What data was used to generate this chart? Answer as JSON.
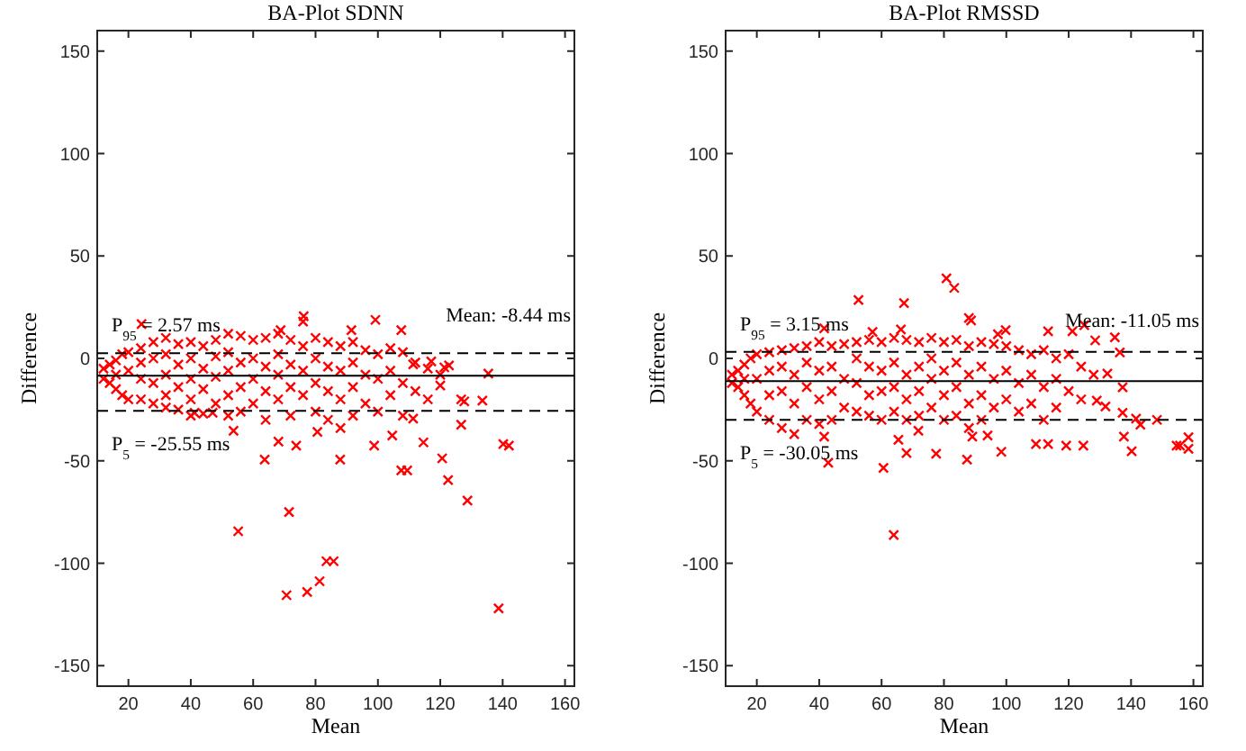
{
  "chart_data": [
    {
      "type": "scatter",
      "title": "BA-Plot SDNN",
      "xlabel": "Mean",
      "ylabel": "Difference",
      "marker": "cross",
      "xlim": [
        10,
        163
      ],
      "xticks": [
        20,
        40,
        60,
        80,
        100,
        120,
        140,
        160
      ],
      "ylim": [
        -160,
        160
      ],
      "yticks": [
        -150,
        -100,
        -50,
        0,
        50,
        100,
        150
      ],
      "ref_lines": [
        {
          "axis": "y",
          "value": 2.57,
          "label": "P$_{95}$ = 2.57 ms",
          "line_style": "dashed",
          "color": "#000000"
        },
        {
          "axis": "y",
          "value": -8.44,
          "label": "Mean: -8.44 ms",
          "line_style": "solid",
          "color": "#000000"
        },
        {
          "axis": "y",
          "value": -25.55,
          "label": "P$_{5}$ = -25.55 ms",
          "line_style": "dashed",
          "color": "#000000"
        }
      ],
      "series": [
        {
          "color": "#ff0000",
          "x": [
            12,
            12,
            14,
            14,
            16,
            16,
            16,
            18,
            18,
            20,
            20,
            20,
            24,
            24,
            24,
            24,
            28,
            28,
            28,
            28,
            32,
            32,
            32,
            32,
            32,
            36,
            36,
            36,
            36,
            40,
            40,
            40,
            40,
            40,
            44,
            44,
            44,
            44,
            48,
            48,
            48,
            48,
            52,
            52,
            52,
            52,
            52,
            56,
            56,
            56,
            56,
            60,
            60,
            60,
            60,
            64,
            64,
            64,
            64,
            68,
            68,
            68,
            68,
            72,
            72,
            72,
            72,
            76,
            76,
            76,
            76,
            80,
            80,
            80,
            80,
            84,
            84,
            84,
            84,
            88,
            88,
            88,
            88,
            92,
            92,
            92,
            92,
            96,
            96,
            96,
            100,
            100,
            100,
            104,
            104,
            104,
            108,
            108,
            108,
            112,
            112,
            116,
            116,
            120,
            24.2,
            55.2,
            71.5,
            70.7,
            77.3,
            81.3,
            83.5,
            85.8,
            138.7,
            128.7,
            122.5,
            120.6,
            140.2,
            142,
            135.4,
            133.5,
            126.7,
            127.7,
            126.7,
            63.7,
            87.9,
            107.5,
            109.4,
            99.2,
            76.2,
            68.8,
            91.5,
            107.5,
            120,
            114.6,
            111.3,
            104.6,
            98.8,
            80.6,
            73.8,
            68.1,
            53.7,
            41.2,
            47,
            121.3,
            122.8,
            117.1,
            111.3
          ],
          "values": [
            -5,
            -10,
            -3,
            -12,
            -1,
            -8,
            -15,
            2,
            -18,
            3,
            -6,
            -20,
            5,
            -2,
            -10,
            -20,
            8,
            0,
            -12,
            -22,
            10,
            2,
            -8,
            -18,
            -24,
            7,
            -3,
            -14,
            -25,
            8,
            0,
            -10,
            -20,
            -28,
            6,
            -5,
            -15,
            -27,
            9,
            1,
            -9,
            -22,
            12,
            3,
            -6,
            -18,
            -28,
            11,
            -2,
            -14,
            -26,
            9,
            0,
            -10,
            -22,
            10,
            -4,
            -16,
            -30,
            12,
            2,
            -8,
            -20,
            9,
            -3,
            -14,
            -28,
            18,
            6,
            -6,
            -18,
            10,
            0,
            -12,
            -26,
            8,
            -4,
            -16,
            -30,
            6,
            -6,
            -20,
            -34,
            8,
            -2,
            -14,
            -28,
            4,
            -8,
            -22,
            2,
            -10,
            -26,
            5,
            -6,
            -18,
            3,
            -12,
            -28,
            -2,
            -16,
            -5,
            -20,
            -8,
            16.8,
            -84.4,
            -75,
            -115.6,
            -114,
            -108.8,
            -99,
            -99,
            -122,
            -69.4,
            -59.4,
            -48.8,
            -41.8,
            -42.6,
            -7.4,
            -20.6,
            -20,
            -21,
            -32.4,
            -49.4,
            -49.4,
            -54.7,
            -54.7,
            18.8,
            20.6,
            13.8,
            13.8,
            13.8,
            -13.2,
            -41,
            -29.4,
            -37.6,
            -42.6,
            -35.9,
            -42.6,
            -40.6,
            -35.3,
            -26.5,
            -26.5,
            -4.4,
            -3.5,
            -1.5,
            -2.9
          ]
        }
      ]
    },
    {
      "type": "scatter",
      "title": "BA-Plot RMSSD",
      "xlabel": "Mean",
      "ylabel": "Difference",
      "marker": "cross",
      "xlim": [
        10,
        163
      ],
      "xticks": [
        20,
        40,
        60,
        80,
        100,
        120,
        140,
        160
      ],
      "ylim": [
        -160,
        160
      ],
      "yticks": [
        -150,
        -100,
        -50,
        0,
        50,
        100,
        150
      ],
      "ref_lines": [
        {
          "axis": "y",
          "value": 3.15,
          "label": "P$_{95}$ = 3.15 ms",
          "line_style": "dashed",
          "color": "#000000"
        },
        {
          "axis": "y",
          "value": -11.05,
          "label": "Mean: -11.05 ms",
          "line_style": "solid",
          "color": "#000000"
        },
        {
          "axis": "y",
          "value": -30.05,
          "label": "P$_{5}$ = -30.05 ms",
          "line_style": "dashed",
          "color": "#000000"
        }
      ],
      "series": [
        {
          "color": "#ff0000",
          "x": [
            12,
            12,
            14,
            14,
            16,
            16,
            16,
            18,
            18,
            20,
            20,
            20,
            24,
            24,
            24,
            24,
            28,
            28,
            28,
            28,
            32,
            32,
            32,
            32,
            36,
            36,
            36,
            36,
            40,
            40,
            40,
            40,
            44,
            44,
            44,
            44,
            48,
            48,
            48,
            52,
            52,
            52,
            52,
            56,
            56,
            56,
            56,
            60,
            60,
            60,
            60,
            64,
            64,
            64,
            64,
            68,
            68,
            68,
            68,
            72,
            72,
            72,
            72,
            76,
            76,
            76,
            76,
            80,
            80,
            80,
            80,
            84,
            84,
            84,
            84,
            88,
            88,
            88,
            88,
            92,
            92,
            92,
            92,
            96,
            96,
            96,
            100,
            100,
            100,
            104,
            104,
            104,
            108,
            108,
            108,
            112,
            112,
            112,
            116,
            116,
            116,
            120,
            120,
            124,
            124,
            128,
            52.6,
            67.2,
            80.8,
            83.3,
            88,
            88.7,
            41.6,
            57.1,
            66.2,
            63.9,
            60.6,
            42.9,
            68,
            77.5,
            87.4,
            98.4,
            65.4,
            41.6,
            71.8,
            89.1,
            94,
            109.5,
            113.4,
            119.2,
            124.7,
            140.2,
            154.6,
            155.7,
            158.4,
            158.4,
            148.3,
            143,
            137.7,
            137.3,
            131.8,
            129,
            137.3,
            134.8,
            136.4,
            128.5,
            125,
            121.2,
            113.4,
            99.8,
            97.3,
            132.4,
            141.6
          ],
          "values": [
            -8,
            -12,
            -6,
            -14,
            -3,
            -10,
            -18,
            0,
            -22,
            2,
            -10,
            -26,
            3,
            -6,
            -18,
            -30,
            4,
            -4,
            -16,
            -34,
            5,
            -8,
            -22,
            -37,
            6,
            -2,
            -14,
            -30,
            8,
            -6,
            -20,
            -32,
            6,
            -4,
            -16,
            -30,
            7,
            -10,
            -24,
            8,
            0,
            -12,
            -26,
            9,
            -4,
            -18,
            -28,
            8,
            -6,
            -16,
            -30,
            10,
            -2,
            -14,
            -26,
            9,
            -8,
            -20,
            -30,
            8,
            -4,
            -16,
            -28,
            10,
            0,
            -10,
            -24,
            8,
            -6,
            -18,
            -30,
            9,
            -2,
            -14,
            -28,
            6,
            -8,
            -22,
            -34,
            8,
            -4,
            -18,
            -30,
            7,
            -10,
            -24,
            6,
            -6,
            -20,
            4,
            -12,
            -26,
            2,
            -8,
            -22,
            4,
            -14,
            -30,
            0,
            -10,
            -24,
            2,
            -16,
            -4,
            -20,
            -8,
            28.5,
            27,
            39.1,
            34.4,
            19.7,
            18.5,
            14.7,
            12.9,
            14.1,
            -86.2,
            -53.5,
            -50.9,
            -46.2,
            -46.5,
            -49.4,
            -45.6,
            -39.7,
            -38.2,
            -35.3,
            -38.2,
            -37.6,
            -41.8,
            -41.8,
            -42.6,
            -42.6,
            -45.3,
            -42.6,
            -42.6,
            -44.1,
            -38.5,
            -30,
            -32.4,
            -38.2,
            -26.5,
            -23.5,
            -20.6,
            -14.1,
            10.3,
            2.9,
            8.8,
            16.2,
            13.2,
            13.2,
            13.8,
            11.8,
            -7.4,
            -29.4
          ]
        }
      ]
    }
  ]
}
